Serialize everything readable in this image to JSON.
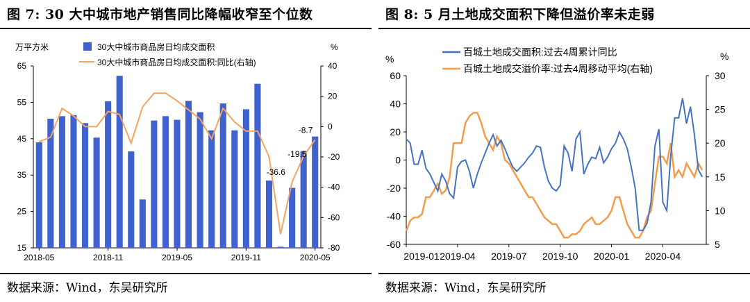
{
  "colors": {
    "bar": "#3F62CE",
    "orange": "#F4A460",
    "blue_line": "#4472C4",
    "orange_line": "#F39C4A"
  },
  "left": {
    "title": "图 7: 30 大中城市地产销售同比降幅收窄至个位数",
    "source": "数据来源：Wind，东吴研究所",
    "chart_data": {
      "type": "bar",
      "y_unit_left": "万平方米",
      "y_unit_right": "%",
      "legend": [
        "30大中城市商品房日均成交面积",
        "30大中城市商品房日均成交面积:同比(右轴)"
      ],
      "ylim_left": [
        15,
        65
      ],
      "yticks_left": [
        15,
        25,
        35,
        45,
        55,
        65
      ],
      "ylim_right": [
        -80,
        40
      ],
      "yticks_right": [
        -80,
        -60,
        -40,
        -20,
        0,
        20,
        40
      ],
      "xtick_labels": [
        "2018-05",
        "2018-11",
        "2019-05",
        "2019-11",
        "2020-05"
      ],
      "x_months": [
        "2018-05",
        "2018-06",
        "2018-07",
        "2018-08",
        "2018-09",
        "2018-10",
        "2018-11",
        "2018-12",
        "2019-01",
        "2019-02",
        "2019-03",
        "2019-04",
        "2019-05",
        "2019-06",
        "2019-07",
        "2019-08",
        "2019-09",
        "2019-10",
        "2019-11",
        "2019-12",
        "2020-01",
        "2020-02",
        "2020-03",
        "2020-04",
        "2020-05"
      ],
      "series": [
        {
          "name": "30大中城市商品房日均成交面积",
          "kind": "bar",
          "axis": "left",
          "values": [
            44.0,
            50.5,
            51.2,
            51.5,
            49.3,
            45.3,
            55.3,
            62.3,
            41.5,
            28.3,
            50.0,
            51.2,
            50.2,
            55.4,
            52.3,
            47.3,
            54.7,
            47.3,
            53.1,
            60.1,
            33.5,
            15.3,
            31.5,
            41.6,
            45.6
          ]
        },
        {
          "name": "30大中城市商品房日均成交面积:同比(右轴)",
          "kind": "line",
          "axis": "right",
          "values": [
            -10,
            -7,
            12,
            7,
            0,
            0,
            10,
            8,
            -11,
            13,
            22,
            22,
            17,
            11,
            5,
            -8,
            12,
            3,
            -3,
            -3,
            -20,
            -71,
            -36.6,
            -19.5,
            -8.7
          ]
        }
      ],
      "annotations": [
        "-36.6",
        "-19.5",
        "-8.7"
      ]
    }
  },
  "right": {
    "title": "图 8:  5 月土地成交面积下降但溢价率未走弱",
    "source": "数据来源：Wind，东吴研究所",
    "chart_data": {
      "type": "line",
      "y_unit_left": "%",
      "y_unit_right": "%",
      "legend": [
        "百城土地成交面积:过去4周累计同比",
        "百城土地成交溢价率:过去4周移动平均(右轴)"
      ],
      "ylim_left": [
        -60,
        60
      ],
      "yticks_left": [
        -60,
        -40,
        -20,
        0,
        20,
        40,
        60
      ],
      "ylim_right": [
        5,
        30
      ],
      "yticks_right": [
        5,
        10,
        15,
        20,
        25,
        30
      ],
      "xlim_weeks": [
        0,
        76
      ],
      "xtick_weeks": [
        0,
        13,
        26,
        39,
        52,
        65
      ],
      "xtick_labels": [
        "2019-01",
        "2019-04",
        "2019-07",
        "2019-10",
        "2020-01",
        "2020-04"
      ],
      "series": [
        {
          "name": "百城土地成交面积:过去4周累计同比",
          "axis": "left",
          "x": [
            0,
            1,
            2,
            3,
            4,
            5,
            6,
            7,
            8,
            9,
            10,
            11,
            12,
            13,
            14,
            15,
            16,
            17,
            18,
            19,
            20,
            21,
            22,
            23,
            24,
            25,
            26,
            27,
            28,
            29,
            30,
            31,
            32,
            33,
            34,
            35,
            36,
            37,
            38,
            39,
            40,
            41,
            42,
            43,
            44,
            45,
            46,
            47,
            48,
            49,
            50,
            51,
            52,
            53,
            54,
            55,
            56,
            57,
            58,
            59,
            60,
            61,
            62,
            63,
            64,
            65,
            66,
            67,
            68,
            69,
            70,
            71,
            72,
            73,
            74,
            75
          ],
          "y": [
            15,
            12,
            -3,
            -3,
            7,
            -6,
            -10,
            -16,
            -22,
            -10,
            -15,
            -24,
            -27,
            -5,
            -1,
            0,
            -8,
            -20,
            -10,
            -2,
            5,
            12,
            18,
            10,
            14,
            8,
            1,
            -5,
            -8,
            -5,
            -2,
            2,
            5,
            10,
            9,
            -5,
            -15,
            -20,
            -22,
            -18,
            10,
            5,
            -8,
            15,
            20,
            -10,
            -3,
            2,
            1,
            9,
            -2,
            2,
            8,
            12,
            20,
            15,
            8,
            -5,
            -20,
            -50,
            -50,
            -45,
            -30,
            10,
            22,
            -30,
            -36,
            3,
            30,
            30,
            44,
            26,
            38,
            18,
            -7,
            -12
          ]
        },
        {
          "name": "百城土地成交溢价率:过去4周移动平均(右轴)",
          "axis": "right",
          "x": [
            0,
            1,
            2,
            3,
            4,
            5,
            6,
            7,
            8,
            9,
            10,
            11,
            12,
            13,
            14,
            15,
            16,
            17,
            18,
            19,
            20,
            21,
            22,
            23,
            24,
            25,
            26,
            27,
            28,
            29,
            30,
            31,
            32,
            33,
            34,
            35,
            36,
            37,
            38,
            39,
            40,
            41,
            42,
            43,
            44,
            45,
            46,
            47,
            48,
            49,
            50,
            51,
            52,
            53,
            54,
            55,
            56,
            57,
            58,
            59,
            60,
            61,
            62,
            63,
            64,
            65,
            66,
            67,
            68,
            69,
            70,
            71,
            72,
            73,
            74,
            75
          ],
          "y": [
            7,
            8.5,
            9,
            9,
            9.5,
            12,
            12,
            13,
            14,
            12.5,
            13,
            15,
            20,
            20,
            20,
            23,
            24,
            24.5,
            24.5,
            23,
            21,
            20,
            19,
            21,
            20,
            17.5,
            17,
            16,
            15,
            14,
            13,
            12,
            12,
            11,
            10,
            9,
            8.5,
            8,
            8,
            7,
            6,
            6,
            6.5,
            6.5,
            7,
            8,
            8.5,
            9,
            8,
            8,
            8.5,
            9,
            10,
            12,
            12,
            10,
            8,
            7,
            6,
            6,
            7,
            9,
            10,
            14,
            18,
            18,
            17,
            20,
            15,
            16,
            15,
            17,
            16,
            15,
            17,
            16
          ]
        }
      ]
    }
  }
}
